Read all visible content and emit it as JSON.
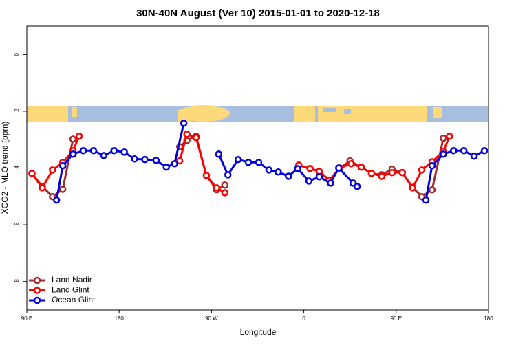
{
  "chart_data": {
    "type": "line",
    "title": "30N-40N August (Ver 10)   2015-01-01 to 2020-12-18",
    "x_label": "Longitude",
    "y_label": "XCO2 - MLO trend (ppm)",
    "xlim": [
      90,
      540
    ],
    "xticks": [
      {
        "value": 90,
        "label": "90 E"
      },
      {
        "value": 180,
        "label": "180"
      },
      {
        "value": 270,
        "label": "90 W"
      },
      {
        "value": 360,
        "label": "0"
      },
      {
        "value": 450,
        "label": "90 E"
      },
      {
        "value": 540,
        "label": "180"
      }
    ],
    "ylim": [
      -9,
      1
    ],
    "yticks": [
      0,
      -2,
      -4,
      -6,
      -8
    ],
    "legend": "bottom-left",
    "series": [
      {
        "name": "Land Nadir",
        "color": "#a52a2a",
        "x": [
          95,
          105,
          115,
          125,
          135,
          null,
          239,
          246,
          255,
          265,
          275,
          283,
          null,
          355,
          366,
          375,
          385,
          395,
          405,
          416,
          426,
          436,
          446,
          456,
          466,
          475,
          485,
          496
        ],
        "values": [
          -4.19,
          -4.65,
          -5.01,
          -4.75,
          -2.98,
          null,
          -3.25,
          -3.03,
          -2.88,
          -4.26,
          -4.77,
          -4.6,
          null,
          -3.9,
          -4.02,
          -4.12,
          -4.43,
          -4.0,
          -3.75,
          -3.97,
          -4.19,
          -4.24,
          -4.04,
          -4.16,
          -4.68,
          -5.01,
          -4.77,
          -2.95
        ]
      },
      {
        "name": "Land Glint",
        "color": "#ff0000",
        "x": [
          95,
          105,
          115,
          125,
          135,
          141,
          null,
          239,
          246,
          255,
          265,
          275,
          283,
          null,
          355,
          366,
          375,
          385,
          395,
          406,
          416,
          426,
          436,
          446,
          456,
          466,
          475,
          485,
          496,
          502
        ],
        "values": [
          -4.19,
          -4.7,
          -4.07,
          -3.8,
          -3.39,
          -2.88,
          null,
          -3.75,
          -2.81,
          -2.93,
          -4.26,
          -4.7,
          -4.87,
          null,
          -3.9,
          -4.02,
          -4.12,
          -4.43,
          -4.0,
          -3.85,
          -3.97,
          -4.19,
          -4.29,
          -4.16,
          -4.16,
          -4.7,
          -4.07,
          -3.78,
          -3.41,
          -2.88
        ]
      },
      {
        "name": "Ocean Glint",
        "color": "#0000dd",
        "x": [
          119,
          125,
          135,
          145,
          155,
          165,
          175,
          185,
          195,
          205,
          216,
          226,
          234,
          243,
          null,
          277,
          286,
          296,
          306,
          316,
          326,
          335,
          345,
          354,
          365,
          375,
          386,
          394,
          408,
          412,
          null,
          479,
          485,
          496,
          506,
          516,
          526,
          536
        ],
        "values": [
          -5.13,
          -3.92,
          -3.51,
          -3.39,
          -3.39,
          -3.56,
          -3.39,
          -3.44,
          -3.68,
          -3.7,
          -3.73,
          -3.97,
          -3.85,
          -2.42,
          null,
          -3.51,
          -4.24,
          -3.7,
          -3.8,
          -3.8,
          -4.07,
          -4.14,
          -4.29,
          -4.02,
          -4.46,
          -4.31,
          -4.53,
          -4.0,
          -4.53,
          -4.65,
          null,
          -5.13,
          -3.92,
          -3.51,
          -3.39,
          -3.39,
          -3.58,
          -3.39
        ]
      }
    ]
  }
}
